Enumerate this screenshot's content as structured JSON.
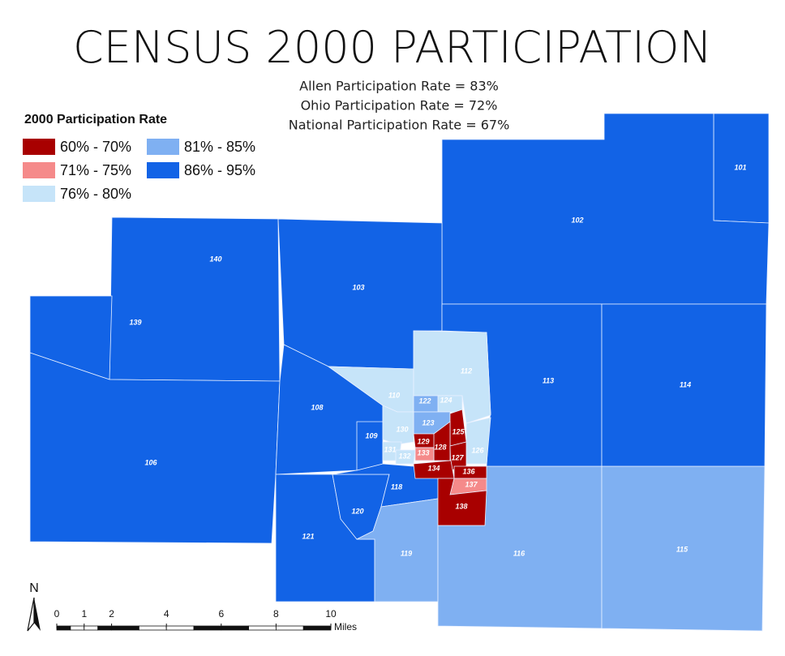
{
  "title": "CENSUS 2000 PARTICIPATION",
  "subtitle": [
    "Allen Participation Rate = 83%",
    "Ohio Participation Rate = 72%",
    "National Participation Rate = 67%"
  ],
  "legend": {
    "title": "2000 Participation Rate",
    "items": [
      {
        "label": "60% - 70%",
        "color": "#a80000"
      },
      {
        "label": "71% - 75%",
        "color": "#f58a8a"
      },
      {
        "label": "76% - 80%",
        "color": "#c6e4f9"
      },
      {
        "label": "81% - 85%",
        "color": "#7fb0f2"
      },
      {
        "label": "86% - 95%",
        "color": "#1263e6"
      }
    ]
  },
  "tracts": [
    {
      "label": "101",
      "class": 4
    },
    {
      "label": "102",
      "class": 4
    },
    {
      "label": "140",
      "class": 4
    },
    {
      "label": "139",
      "class": 4
    },
    {
      "label": "106",
      "class": 4
    },
    {
      "label": "103",
      "class": 4
    },
    {
      "label": "108",
      "class": 4
    },
    {
      "label": "121",
      "class": 4
    },
    {
      "label": "120",
      "class": 4
    },
    {
      "label": "118",
      "class": 4
    },
    {
      "label": "119",
      "class": 3
    },
    {
      "label": "116",
      "class": 3
    },
    {
      "label": "115",
      "class": 3
    },
    {
      "label": "113",
      "class": 4
    },
    {
      "label": "114",
      "class": 4
    },
    {
      "label": "110",
      "class": 2
    },
    {
      "label": "112",
      "class": 2
    },
    {
      "label": "109",
      "class": 4
    },
    {
      "label": "124",
      "class": 2
    },
    {
      "label": "122",
      "class": 3
    },
    {
      "label": "123",
      "class": 3
    },
    {
      "label": "130",
      "class": 2
    },
    {
      "label": "125",
      "class": 0
    },
    {
      "label": "126",
      "class": 2
    },
    {
      "label": "129",
      "class": 0
    },
    {
      "label": "128",
      "class": 0
    },
    {
      "label": "131",
      "class": 2
    },
    {
      "label": "132",
      "class": 2
    },
    {
      "label": "133",
      "class": 1
    },
    {
      "label": "127",
      "class": 0
    },
    {
      "label": "134",
      "class": 0
    },
    {
      "label": "136",
      "class": 0
    },
    {
      "label": "137",
      "class": 1
    },
    {
      "label": "138",
      "class": 0
    }
  ],
  "north": "N",
  "scale_bar": {
    "ticks": [
      0,
      1,
      2,
      4,
      6,
      8,
      10
    ],
    "unit": "Miles"
  }
}
